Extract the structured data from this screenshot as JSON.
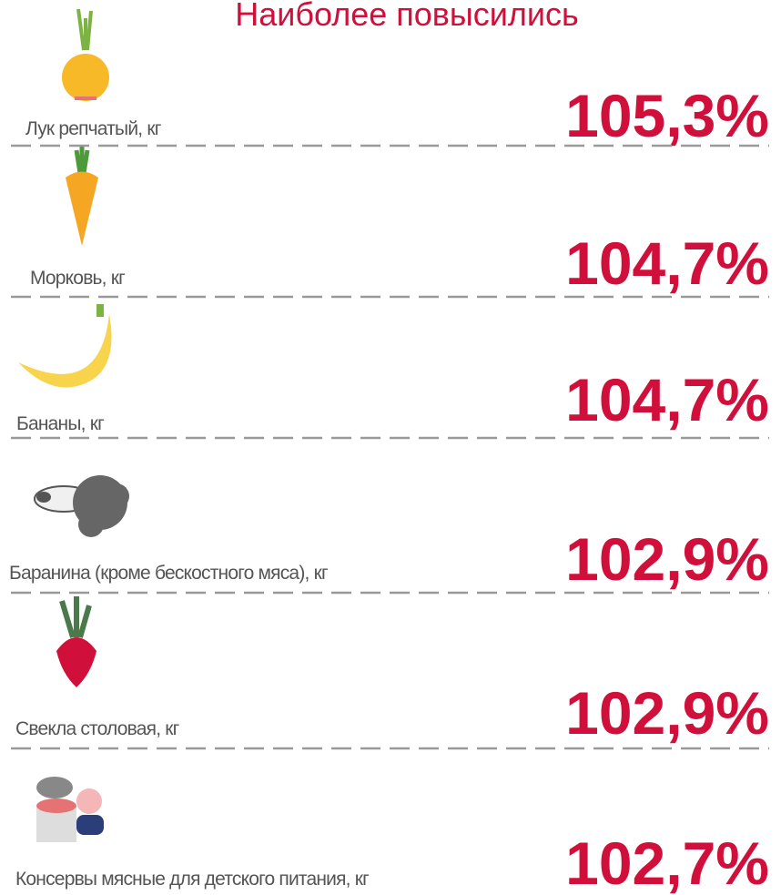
{
  "title": "Наиболее повысились",
  "items": [
    {
      "label": "Лук репчатый, кг",
      "value": "105,3%"
    },
    {
      "label": "Морковь, кг",
      "value": "104,7%"
    },
    {
      "label": "Бананы, кг",
      "value": "104,7%"
    },
    {
      "label": "Баранина (кроме бескостного мяса), кг",
      "value": "102,9%"
    },
    {
      "label": "Свекла столовая, кг",
      "value": "102,9%"
    },
    {
      "label": "Консервы мясные для детского питания, кг",
      "value": "102,7%"
    }
  ]
}
